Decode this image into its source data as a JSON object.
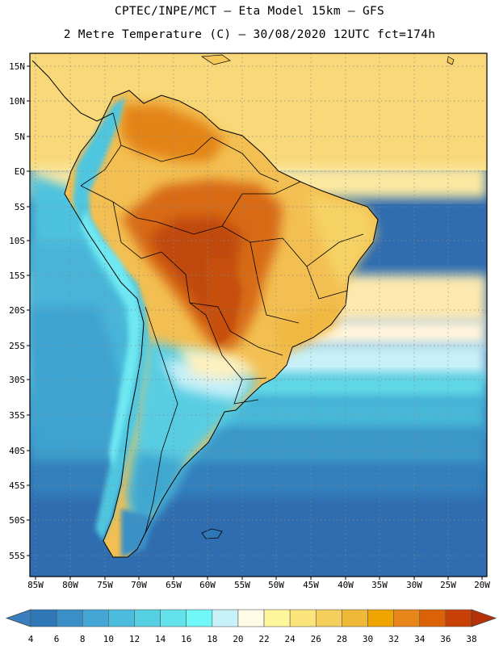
{
  "header": {
    "line1": "CPTEC/INPE/MCT –  Eta Model 15km – GFS",
    "line2": "2 Metre Temperature (C) – 30/08/2020 12UTC fct=174h"
  },
  "axes": {
    "lat_labels": [
      "15N",
      "10N",
      "5N",
      "EQ",
      "5S",
      "10S",
      "15S",
      "20S",
      "25S",
      "30S",
      "35S",
      "40S",
      "45S",
      "50S",
      "55S"
    ],
    "lon_labels": [
      "85W",
      "80W",
      "75W",
      "70W",
      "65W",
      "60W",
      "55W",
      "50W",
      "45W",
      "40W",
      "35W",
      "30W",
      "25W",
      "20W"
    ]
  },
  "colorbar": {
    "labels": [
      "4",
      "6",
      "8",
      "10",
      "12",
      "14",
      "16",
      "18",
      "20",
      "22",
      "24",
      "26",
      "28",
      "30",
      "32",
      "34",
      "36",
      "38"
    ],
    "colors": [
      "#3a7ec0",
      "#2f78b8",
      "#3b8fc8",
      "#44a6d4",
      "#4cbcdc",
      "#55cfe2",
      "#63e2ec",
      "#70f7f8",
      "#c8f2fa",
      "#fffbe6",
      "#fff59a",
      "#fbe47a",
      "#f5cf5c",
      "#efb938",
      "#f0a400",
      "#e8861a",
      "#dc6208",
      "#c94106",
      "#b43205"
    ]
  },
  "regions": {
    "labels": []
  }
}
